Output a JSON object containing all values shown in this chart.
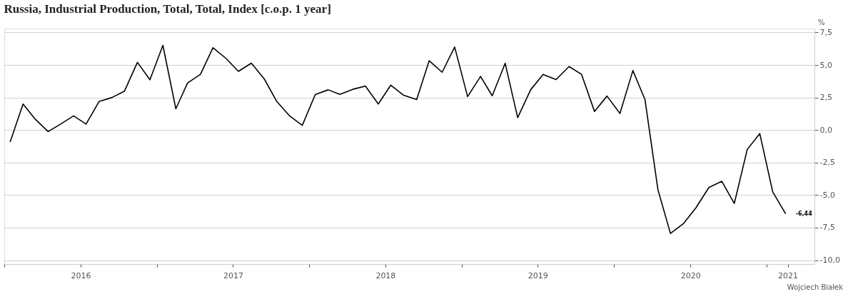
{
  "chart_data": {
    "type": "line",
    "title": "Russia, Industrial Production, Total, Total, Index [c.o.p. 1 year]",
    "ylabel": "%",
    "x": [
      "2016-01-15",
      "2016-02-15",
      "2016-03-15",
      "2016-04-15",
      "2016-05-15",
      "2016-06-15",
      "2016-07-15",
      "2016-08-15",
      "2016-09-15",
      "2016-10-15",
      "2016-11-15",
      "2016-12-15",
      "2017-01-15",
      "2017-02-15",
      "2017-03-15",
      "2017-04-15",
      "2017-05-15",
      "2017-06-15",
      "2017-07-15",
      "2017-08-15",
      "2017-09-15",
      "2017-10-15",
      "2017-11-15",
      "2017-12-15",
      "2018-01-15",
      "2018-02-15",
      "2018-03-15",
      "2018-04-15",
      "2018-05-15",
      "2018-06-15",
      "2018-07-15",
      "2018-08-15",
      "2018-09-15",
      "2018-10-15",
      "2018-11-15",
      "2018-12-15",
      "2019-01-15",
      "2019-02-15",
      "2019-03-15",
      "2019-04-15",
      "2019-05-15",
      "2019-06-15",
      "2019-07-15",
      "2019-08-15",
      "2019-09-15",
      "2019-10-15",
      "2019-11-15",
      "2019-12-15",
      "2020-01-15",
      "2020-02-15",
      "2020-03-15",
      "2020-04-15",
      "2020-05-15",
      "2020-06-15",
      "2020-07-15",
      "2020-08-15",
      "2020-09-15",
      "2020-10-15",
      "2020-11-15",
      "2020-12-15",
      "2021-01-15",
      "2021-02-15"
    ],
    "series": [
      {
        "color": "#000000",
        "values": [
          -0.92,
          2.0,
          0.84,
          -0.12,
          0.46,
          1.09,
          0.46,
          2.19,
          2.5,
          2.99,
          5.2,
          3.86,
          6.51,
          1.63,
          3.61,
          4.28,
          6.33,
          5.51,
          4.51,
          5.14,
          3.92,
          2.19,
          1.07,
          0.36,
          2.73,
          3.09,
          2.74,
          3.13,
          3.38,
          2.0,
          3.45,
          2.67,
          2.34,
          5.33,
          4.44,
          6.38,
          2.57,
          4.12,
          2.63,
          5.13,
          0.95,
          3.09,
          4.27,
          3.88,
          4.88,
          4.28,
          1.43,
          2.61,
          1.27,
          4.57,
          2.34,
          -4.58,
          -7.95,
          -7.2,
          -5.98,
          -4.42,
          -3.94,
          -5.64,
          -1.49,
          -0.27,
          -4.75,
          -6.44
        ],
        "value_labels": [
          null,
          null,
          null,
          null,
          null,
          null,
          null,
          null,
          null,
          null,
          null,
          null,
          null,
          null,
          null,
          null,
          null,
          null,
          null,
          null,
          null,
          null,
          null,
          null,
          null,
          null,
          null,
          null,
          null,
          null,
          null,
          null,
          null,
          null,
          null,
          null,
          null,
          null,
          null,
          null,
          null,
          null,
          null,
          null,
          null,
          null,
          null,
          null,
          null,
          null,
          null,
          null,
          null,
          null,
          null,
          null,
          null,
          null,
          null,
          null,
          null,
          "-6,44"
        ]
      }
    ],
    "xlim": [
      "2016-01-01",
      "2021-04-25"
    ],
    "xticks": [
      {
        "value": "2016-01-01",
        "label": null
      },
      {
        "value": "2016-07-02",
        "label": "2016"
      },
      {
        "value": "2017-01-01",
        "label": null
      },
      {
        "value": "2017-07-02",
        "label": "2017"
      },
      {
        "value": "2018-01-01",
        "label": null
      },
      {
        "value": "2018-07-02",
        "label": "2018"
      },
      {
        "value": "2019-01-01",
        "label": null
      },
      {
        "value": "2019-07-02",
        "label": "2019"
      },
      {
        "value": "2020-01-01",
        "label": null
      },
      {
        "value": "2020-07-02",
        "label": "2020"
      },
      {
        "value": "2021-01-01",
        "label": null
      },
      {
        "value": "2021-02-20",
        "label": "2021"
      }
    ],
    "ylim": [
      -10.3,
      7.8
    ],
    "yticks": [
      {
        "value": 7.5,
        "label": "7,5"
      },
      {
        "value": 5,
        "label": "5,0"
      },
      {
        "value": 2.5,
        "label": "2,5"
      },
      {
        "value": 0,
        "label": "0,0"
      },
      {
        "value": -2.5,
        "label": "-2,5"
      },
      {
        "value": -5,
        "label": "-5,0"
      },
      {
        "value": -7.5,
        "label": "-7,5"
      },
      {
        "value": -10,
        "label": "-10,0"
      }
    ],
    "grid": "y",
    "marker": "none",
    "line_style": "solid",
    "annotations": [
      "Wojciech Białek"
    ]
  }
}
